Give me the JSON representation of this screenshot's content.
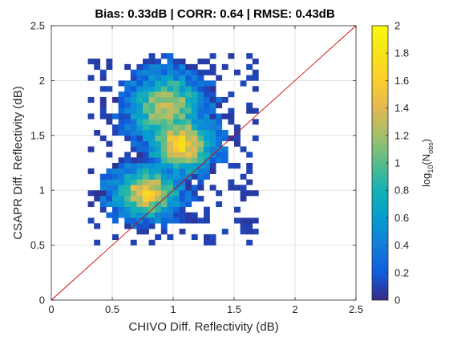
{
  "chart_data": {
    "type": "heatmap",
    "title": "Bias: 0.33dB | CORR: 0.64 | RMSE: 0.43dB",
    "xlabel": "CHIVO Diff. Reflectivity (dB)",
    "ylabel": "CSAPR Diff. Reflectivity (dB)",
    "xlim": [
      0,
      2.5
    ],
    "ylim": [
      0,
      2.5
    ],
    "x_ticks": [
      "0",
      "0.5",
      "1",
      "1.5",
      "2",
      "2.5"
    ],
    "y_ticks": [
      "0",
      "0.5",
      "1",
      "1.5",
      "2",
      "2.5"
    ],
    "grid": true,
    "reference_line": {
      "x": [
        0,
        2.5
      ],
      "y": [
        0,
        2.5
      ],
      "color": "#cc0000"
    },
    "bin_size": 0.05,
    "colorbar": {
      "label_main": "log",
      "label_sub": "10",
      "label_paren": "(N",
      "label_obs": "obs",
      "label_close": ")",
      "range": [
        0,
        2
      ],
      "ticks": [
        "0",
        "0.2",
        "0.4",
        "0.6",
        "0.8",
        "1",
        "1.2",
        "1.4",
        "1.6",
        "1.8",
        "2"
      ],
      "colormap": "parula"
    },
    "density_model": {
      "description_of_clusters": [
        {
          "cx": 0.78,
          "cy": 0.98,
          "amp": 1.55,
          "sx": 0.18,
          "sy": 0.15
        },
        {
          "cx": 1.07,
          "cy": 1.42,
          "amp": 1.65,
          "sx": 0.17,
          "sy": 0.17
        },
        {
          "cx": 0.95,
          "cy": 1.75,
          "amp": 1.3,
          "sx": 0.2,
          "sy": 0.22
        }
      ],
      "bounds": {
        "xmin": 0.3,
        "xmax": 1.68,
        "ymin": 0.5,
        "ymax": 2.26
      }
    }
  }
}
